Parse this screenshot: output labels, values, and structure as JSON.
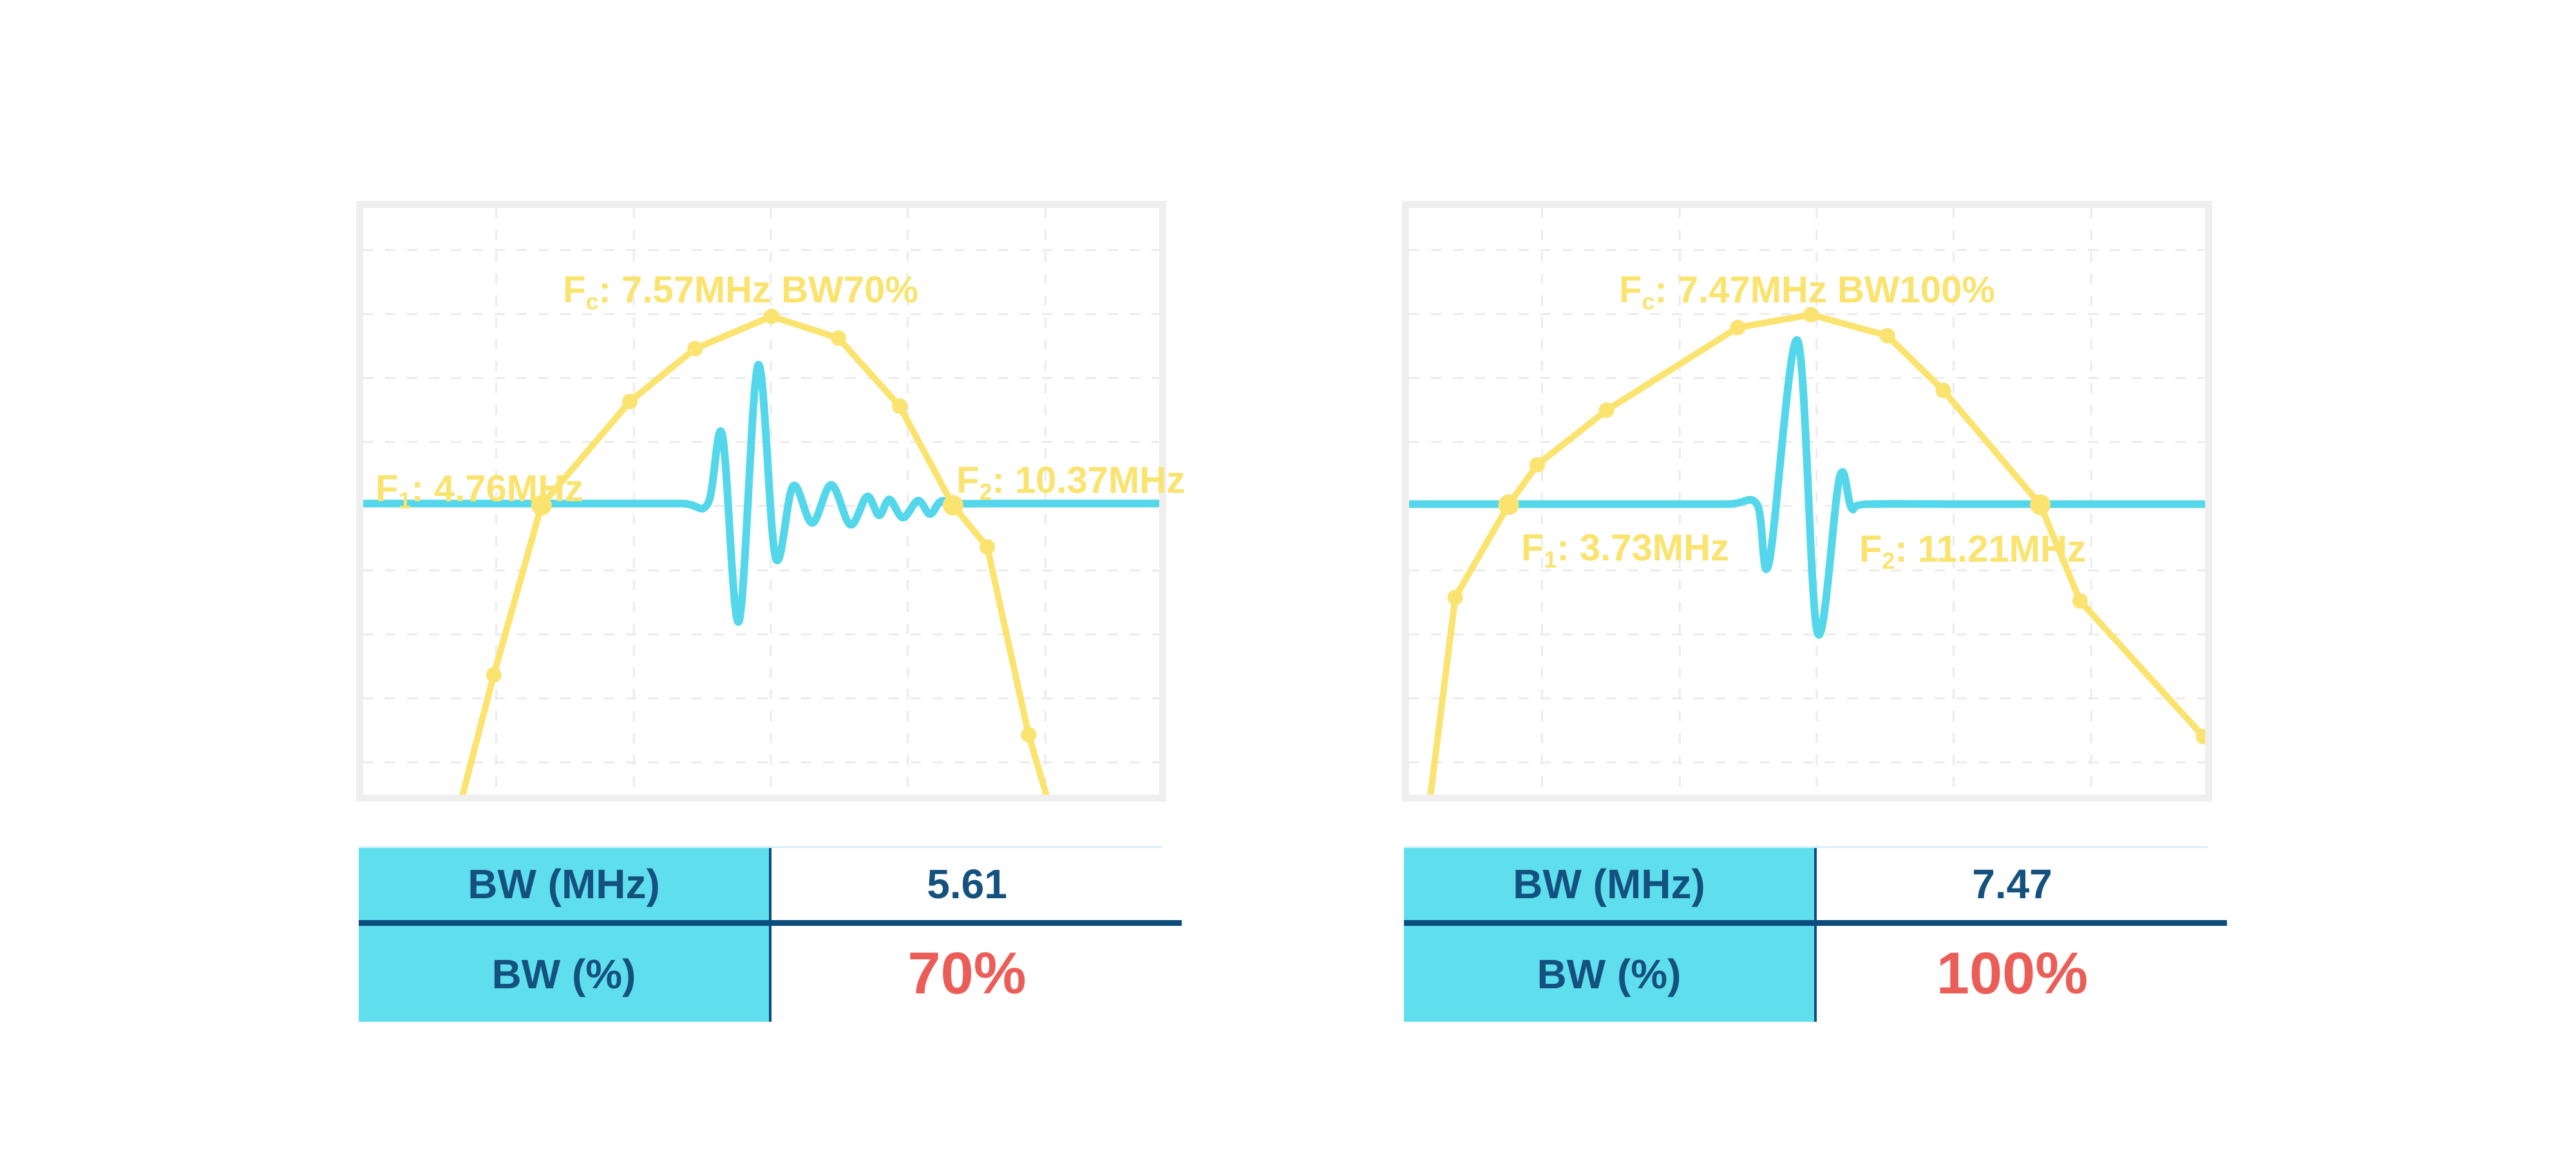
{
  "canvas": {
    "background": "#ffffff"
  },
  "colors": {
    "curve_yellow": "#FAE36E",
    "pulse_cyan": "#55D7EB",
    "table_cyan": "#5FDEED",
    "navy_text": "#15517E",
    "divider_navy": "#0D4D7D",
    "red_value": "#EB5E58",
    "frame_gray": "#EFEFEF",
    "grid_gray": "#EBEBEB",
    "table_top_line": "#D9EFF8"
  },
  "charts": [
    {
      "id": "left",
      "fc_label": {
        "f": "F",
        "sub": "c",
        "rest": ": 7.57MHz BW70%"
      },
      "f1_label": {
        "f": "F",
        "sub": "1",
        "rest": ": 4.76MHz"
      },
      "f2_label": {
        "f": "F",
        "sub": "2",
        "rest": ": 10.37MHz"
      },
      "table": {
        "rows": [
          {
            "label": "BW (MHz)",
            "value": "5.61"
          },
          {
            "label": "BW (%)",
            "value": "70%"
          }
        ]
      }
    },
    {
      "id": "right",
      "fc_label": {
        "f": "F",
        "sub": "c",
        "rest": ": 7.47MHz BW100%"
      },
      "f1_label": {
        "f": "F",
        "sub": "1",
        "rest": ": 3.73MHz"
      },
      "f2_label": {
        "f": "F",
        "sub": "2",
        "rest": ": 11.21MHz"
      },
      "table": {
        "rows": [
          {
            "label": "BW (MHz)",
            "value": "7.47"
          },
          {
            "label": "BW (%)",
            "value": "100%"
          }
        ]
      }
    }
  ],
  "chart_data": [
    {
      "type": "line",
      "title": "Fc: 7.57MHz BW70%",
      "xlabel": "",
      "ylabel": "",
      "fc_mhz": 7.57,
      "f1_mhz": 4.76,
      "f2_mhz": 10.37,
      "bw_mhz": 5.61,
      "bw_percent": 70,
      "grid": {
        "vertical_fractions": [
          0.167,
          0.34,
          0.512,
          0.684,
          0.857
        ],
        "horizontal_fractions": [
          0.072,
          0.181,
          0.29,
          0.399,
          0.508,
          0.618,
          0.727,
          0.836,
          0.945
        ]
      },
      "series": [
        {
          "name": "frequency spectrum (yellow, normalized x/y fractions, y down)",
          "points": [
            [
              0.125,
              1.0
            ],
            [
              0.164,
              0.796
            ],
            [
              0.224,
              0.507
            ],
            [
              0.335,
              0.33
            ],
            [
              0.417,
              0.24
            ],
            [
              0.513,
              0.185
            ],
            [
              0.597,
              0.222
            ],
            [
              0.674,
              0.338
            ],
            [
              0.741,
              0.507
            ],
            [
              0.784,
              0.578
            ],
            [
              0.836,
              0.898
            ],
            [
              0.858,
              1.0
            ]
          ],
          "markers": [
            [
              0.164,
              0.796,
              12
            ],
            [
              0.224,
              0.507,
              16
            ],
            [
              0.335,
              0.33,
              12
            ],
            [
              0.417,
              0.24,
              12
            ],
            [
              0.513,
              0.185,
              12
            ],
            [
              0.597,
              0.222,
              12
            ],
            [
              0.674,
              0.338,
              12
            ],
            [
              0.741,
              0.507,
              16
            ],
            [
              0.784,
              0.578,
              12
            ],
            [
              0.836,
              0.898,
              12
            ]
          ]
        },
        {
          "name": "pulse echo waveform (cyan), -6dB reference line at baseline",
          "baseline": 0.504,
          "points": [
            [
              0,
              0.504
            ],
            [
              0.15,
              0.504
            ],
            [
              0.3,
              0.504
            ],
            [
              0.4,
              0.504
            ],
            [
              0.433,
              0.504
            ],
            [
              0.451,
              0.386
            ],
            [
              0.472,
              0.705
            ],
            [
              0.496,
              0.268
            ],
            [
              0.518,
              0.596
            ],
            [
              0.54,
              0.474
            ],
            [
              0.564,
              0.537
            ],
            [
              0.588,
              0.472
            ],
            [
              0.612,
              0.54
            ],
            [
              0.633,
              0.492
            ],
            [
              0.648,
              0.524
            ],
            [
              0.661,
              0.497
            ],
            [
              0.678,
              0.528
            ],
            [
              0.697,
              0.499
            ],
            [
              0.712,
              0.522
            ],
            [
              0.726,
              0.5
            ],
            [
              0.746,
              0.504
            ],
            [
              0.8,
              0.504
            ],
            [
              0.9,
              0.504
            ],
            [
              1,
              0.504
            ]
          ]
        }
      ]
    },
    {
      "type": "line",
      "title": "Fc: 7.47MHz BW100%",
      "xlabel": "",
      "ylabel": "",
      "fc_mhz": 7.47,
      "f1_mhz": 3.73,
      "f2_mhz": 11.21,
      "bw_mhz": 7.47,
      "bw_percent": 100,
      "grid": {
        "vertical_fractions": [
          0.167,
          0.34,
          0.512,
          0.684,
          0.857
        ],
        "horizontal_fractions": [
          0.072,
          0.181,
          0.29,
          0.399,
          0.508,
          0.618,
          0.727,
          0.836,
          0.945
        ]
      },
      "series": [
        {
          "name": "frequency spectrum (yellow, normalized x/y fractions, y down)",
          "points": [
            [
              0.027,
              1.0
            ],
            [
              0.058,
              0.664
            ],
            [
              0.125,
              0.506
            ],
            [
              0.161,
              0.438
            ],
            [
              0.248,
              0.345
            ],
            [
              0.413,
              0.204
            ],
            [
              0.505,
              0.182
            ],
            [
              0.601,
              0.218
            ],
            [
              0.671,
              0.311
            ],
            [
              0.793,
              0.506
            ],
            [
              0.843,
              0.67
            ],
            [
              0.998,
              0.901
            ]
          ],
          "markers": [
            [
              0.058,
              0.664,
              12
            ],
            [
              0.125,
              0.506,
              16
            ],
            [
              0.161,
              0.438,
              12
            ],
            [
              0.248,
              0.345,
              12
            ],
            [
              0.413,
              0.204,
              12
            ],
            [
              0.505,
              0.182,
              12
            ],
            [
              0.601,
              0.218,
              12
            ],
            [
              0.671,
              0.311,
              12
            ],
            [
              0.793,
              0.506,
              16
            ],
            [
              0.843,
              0.67,
              12
            ],
            [
              0.998,
              0.901,
              12
            ]
          ]
        },
        {
          "name": "pulse echo waveform (cyan), -6dB reference line at baseline",
          "baseline": 0.505,
          "points": [
            [
              0,
              0.505
            ],
            [
              0.15,
              0.505
            ],
            [
              0.3,
              0.505
            ],
            [
              0.4,
              0.505
            ],
            [
              0.437,
              0.505
            ],
            [
              0.452,
              0.606
            ],
            [
              0.488,
              0.226
            ],
            [
              0.513,
              0.724
            ],
            [
              0.541,
              0.459
            ],
            [
              0.556,
              0.512
            ],
            [
              0.575,
              0.505
            ],
            [
              0.7,
              0.505
            ],
            [
              0.85,
              0.505
            ],
            [
              1,
              0.505
            ]
          ]
        }
      ]
    }
  ]
}
